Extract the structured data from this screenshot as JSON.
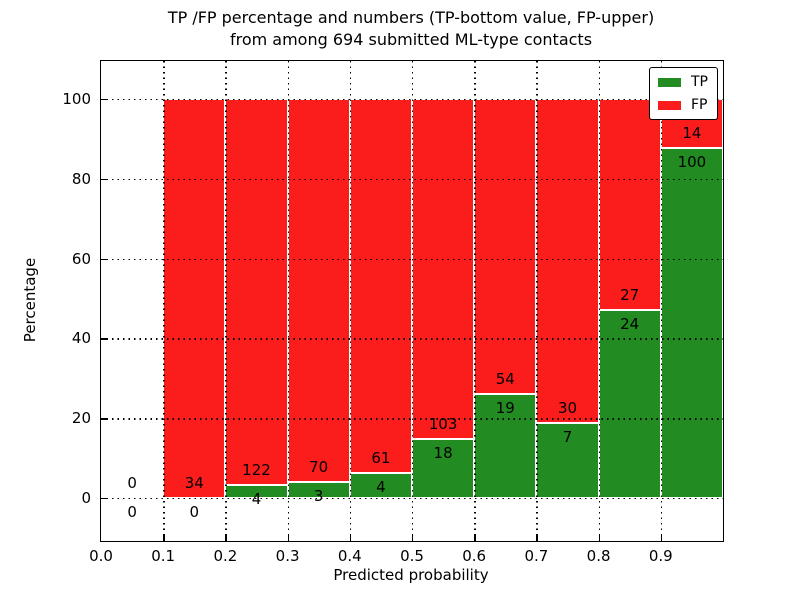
{
  "chart_data": {
    "type": "bar",
    "stacked": true,
    "title_line1": "TP /FP percentage and numbers (TP-bottom value, FP-upper)",
    "title_line2": "from among 694 submitted ML-type contacts",
    "xlabel": "Predicted probability",
    "ylabel": "Percentage",
    "total_contacts": 694,
    "x_ticks": [
      "0.0",
      "0.1",
      "0.2",
      "0.3",
      "0.4",
      "0.5",
      "0.6",
      "0.7",
      "0.8",
      "0.9"
    ],
    "y_ticks": [
      "0",
      "20",
      "40",
      "60",
      "80",
      "100"
    ],
    "xlim": [
      0.0,
      1.0
    ],
    "ylim": [
      -10.8,
      109.6
    ],
    "grid": {
      "style": "dotted",
      "color": "#000000",
      "drawn_over_bars": true
    },
    "colors": {
      "tp": "#228b22",
      "fp": "#fb1c1c",
      "bar_edge": "#ffffff"
    },
    "legend": {
      "position": "upper right",
      "entries": [
        {
          "label": "TP",
          "color": "#228b22"
        },
        {
          "label": "FP",
          "color": "#fb1c1c"
        }
      ]
    },
    "bins": [
      {
        "x0": 0.0,
        "x1": 0.1,
        "tp": 0,
        "fp": 0,
        "tp_pct": null,
        "fp_pct": null
      },
      {
        "x0": 0.1,
        "x1": 0.2,
        "tp": 0,
        "fp": 34,
        "tp_pct": 0.0,
        "fp_pct": 100.0
      },
      {
        "x0": 0.2,
        "x1": 0.3,
        "tp": 4,
        "fp": 122,
        "tp_pct": 3.2,
        "fp_pct": 96.8
      },
      {
        "x0": 0.3,
        "x1": 0.4,
        "tp": 3,
        "fp": 70,
        "tp_pct": 4.1,
        "fp_pct": 95.9
      },
      {
        "x0": 0.4,
        "x1": 0.5,
        "tp": 4,
        "fp": 61,
        "tp_pct": 6.2,
        "fp_pct": 93.8
      },
      {
        "x0": 0.5,
        "x1": 0.6,
        "tp": 18,
        "fp": 103,
        "tp_pct": 14.9,
        "fp_pct": 85.1
      },
      {
        "x0": 0.6,
        "x1": 0.7,
        "tp": 19,
        "fp": 54,
        "tp_pct": 26.0,
        "fp_pct": 74.0
      },
      {
        "x0": 0.7,
        "x1": 0.8,
        "tp": 7,
        "fp": 30,
        "tp_pct": 18.9,
        "fp_pct": 81.1
      },
      {
        "x0": 0.8,
        "x1": 0.9,
        "tp": 24,
        "fp": 27,
        "tp_pct": 47.1,
        "fp_pct": 52.9
      },
      {
        "x0": 0.9,
        "x1": 1.0,
        "tp": 100,
        "fp": 14,
        "tp_pct": 87.7,
        "fp_pct": 12.3
      }
    ]
  }
}
